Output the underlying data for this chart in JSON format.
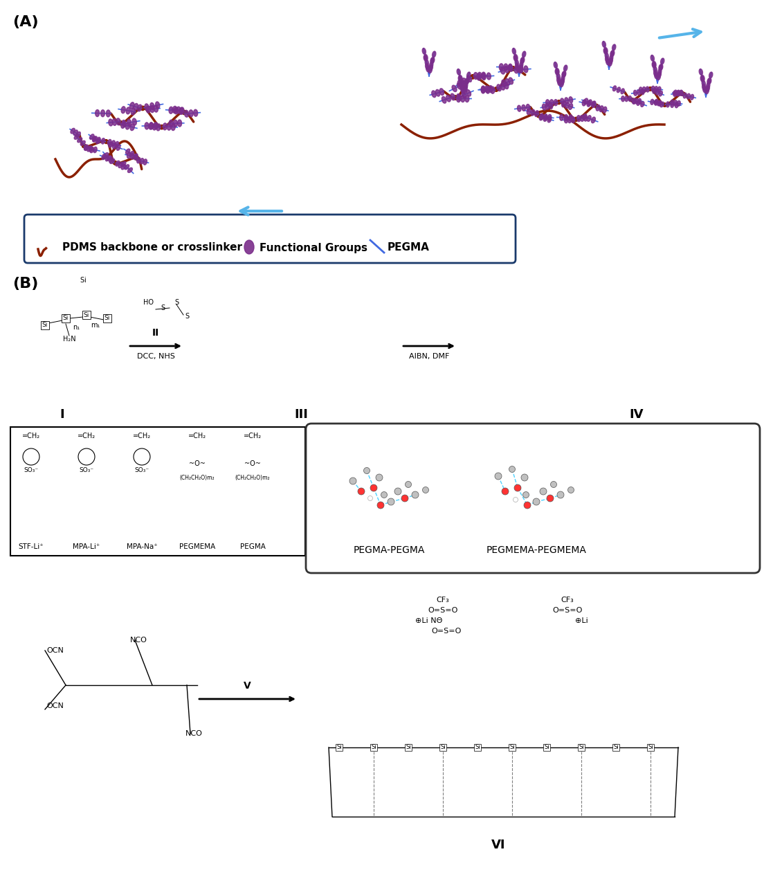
{
  "title": "",
  "bg_color": "#ffffff",
  "panel_A_label": "(A)",
  "panel_B_label": "(B)",
  "legend_items": [
    {
      "label": "PDMS backbone or crosslinker",
      "color": "#8B1A1A"
    },
    {
      "label": "Functional Groups",
      "color": "#7B2D8B"
    },
    {
      "label": "PEGMA",
      "color": "#1E90FF"
    }
  ],
  "reaction_labels_top": [
    "I",
    "II\nDCC, NHS",
    "III",
    "AIBN, DMF",
    "IV"
  ],
  "reaction_labels_bottom": [
    "V",
    "VI"
  ],
  "monomer_labels": [
    "STF-Li⁺",
    "MPA-Li⁺",
    "MPA-Na⁺",
    "PEGMEMA",
    "PEGMA"
  ],
  "mol_labels": [
    "PEGMA-PEGMA",
    "PEGMEMA-PEGMEMA"
  ],
  "arrow_color_reaction": "#000000",
  "arrow_color_stretch": "#56B4E9"
}
